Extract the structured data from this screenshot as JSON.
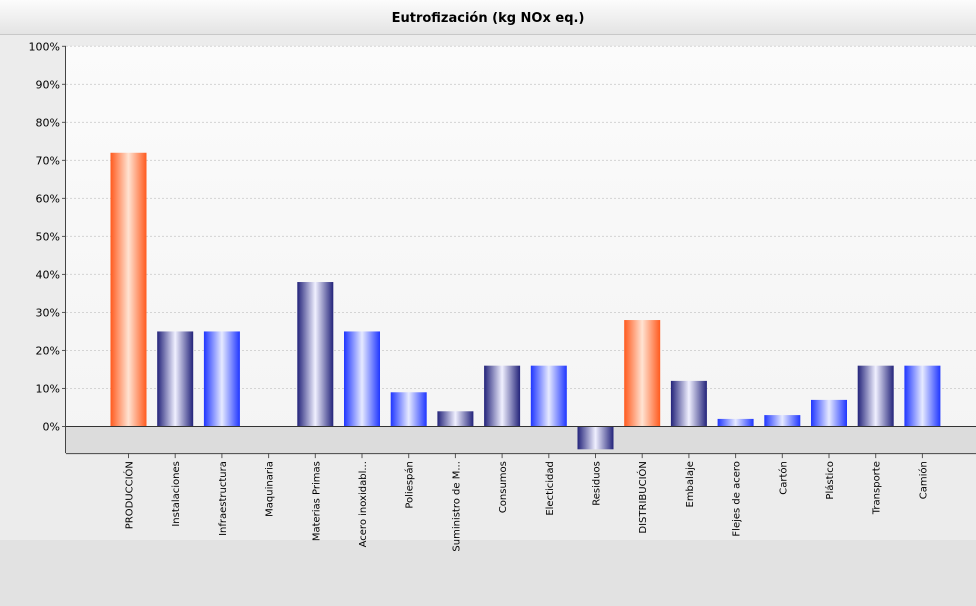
{
  "chart_data": {
    "type": "bar",
    "title": "Eutrofización (kg NOx eq.)",
    "xlabel": "",
    "ylabel": "",
    "ylim": [
      -7,
      100
    ],
    "y_ticks": [
      "0%",
      "10%",
      "20%",
      "30%",
      "40%",
      "50%",
      "60%",
      "70%",
      "80%",
      "90%",
      "100%"
    ],
    "grid": true,
    "legend": "none",
    "categories": [
      "PRODUCCIÓN",
      "Instalaciones",
      "Infraestructura",
      "Maquinaria",
      "Materias Primas",
      "Acero inoxidabl...",
      "Poliespán",
      "Suministro de M...",
      "Consumos",
      "Electicidad",
      "Residuos",
      "DISTRIBUCIÓN",
      "Embalaje",
      "Flejes de acero",
      "Cartón",
      "Plástico",
      "Transporte",
      "Camión"
    ],
    "values": [
      72,
      25,
      25,
      0,
      38,
      25,
      9,
      4,
      16,
      16,
      -6,
      28,
      12,
      2,
      3,
      7,
      16,
      16
    ],
    "bar_styles": [
      "orange",
      "navy",
      "blue",
      "navy",
      "navy",
      "blue",
      "blue",
      "navy",
      "navy",
      "blue",
      "navy",
      "orange",
      "navy",
      "blue",
      "blue",
      "blue",
      "navy",
      "blue"
    ],
    "colors": {
      "orange": "#ff5a1e",
      "navy": "#23237a",
      "blue": "#1f36ff"
    }
  }
}
